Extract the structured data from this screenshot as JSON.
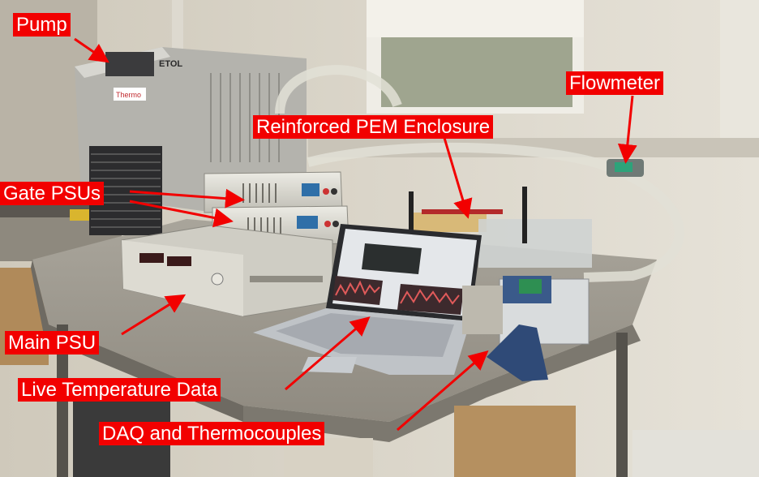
{
  "labels": {
    "pump": "Pump",
    "gate_psus": "Gate PSUs",
    "main_psu": "Main PSU",
    "live_temperature_data": "Live Temperature Data",
    "daq_thermocouples": "DAQ and Thermocouples",
    "reinforced_pem_enclosure": "Reinforced PEM Enclosure",
    "flowmeter": "Flowmeter"
  },
  "device_text": {
    "pump_brand": "Thermo",
    "pump_badge": "ETOL"
  },
  "colors": {
    "label_background": "#f20000",
    "label_text": "#ffffff",
    "arrow": "#f20000"
  }
}
